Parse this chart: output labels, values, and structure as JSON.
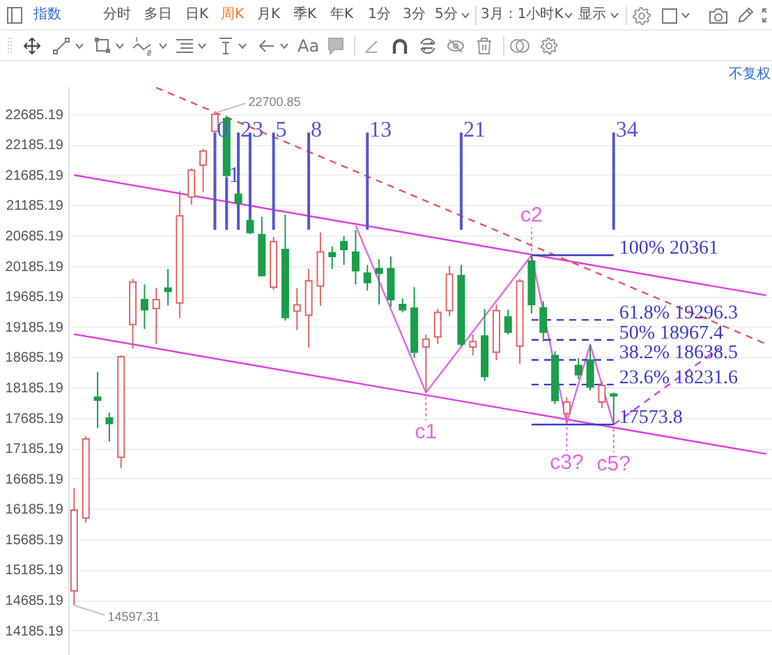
{
  "chart_data": {
    "type": "candlestick",
    "annotations": [
      "指数",
      "分时",
      "多日",
      "日K",
      "周K",
      "月K",
      "季K",
      "年K",
      "1分",
      "3分",
      "5分",
      "3月：1小时K",
      "显示",
      "Aa",
      "不复权",
      "22700.85",
      "14597.31"
    ],
    "categories": [
      null,
      null,
      null,
      null,
      null,
      null,
      null,
      null,
      null,
      null,
      null,
      null,
      null,
      null,
      null,
      null,
      null,
      null,
      null,
      null,
      null,
      null,
      null,
      null,
      null,
      null,
      null,
      null,
      null,
      null,
      null,
      null,
      null,
      null,
      null,
      null,
      null,
      null,
      null,
      null,
      null,
      null,
      null,
      null,
      null,
      null,
      null,
      null,
      null,
      null,
      null,
      null,
      null,
      null,
      null,
      null,
      null,
      null,
      null,
      null
    ],
    "ohlc": [
      [
        14835,
        16530,
        14597.31,
        16165
      ],
      [
        16035,
        17380,
        15960,
        17335
      ],
      [
        18025,
        18440,
        17520,
        17975
      ],
      [
        17680,
        17770,
        17295,
        17590
      ],
      [
        17035,
        18710,
        16855,
        18690
      ],
      [
        19220,
        19970,
        18825,
        19920
      ],
      [
        19630,
        19880,
        19145,
        19465
      ],
      [
        19485,
        19820,
        18895,
        19630
      ],
      [
        19820,
        20135,
        19535,
        19765
      ],
      [
        19575,
        21415,
        19330,
        21010
      ],
      [
        21320,
        21790,
        21195,
        21760
      ],
      [
        21845,
        22110,
        21395,
        22075
      ],
      [
        22400,
        22700.85,
        22400,
        22680
      ],
      [
        22610,
        22655,
        21620,
        21675
      ],
      [
        21365,
        21400,
        21180,
        21225
      ],
      [
        20930,
        20995,
        20705,
        20735
      ],
      [
        20700,
        20995,
        20015,
        20025
      ],
      [
        19835,
        20660,
        19790,
        20585
      ],
      [
        20455,
        21025,
        19285,
        19335
      ],
      [
        19440,
        19820,
        19130,
        19545
      ],
      [
        19375,
        20140,
        18840,
        19940
      ],
      [
        19855,
        20735,
        19530,
        20415
      ],
      [
        20400,
        20505,
        20135,
        20340
      ],
      [
        20585,
        20675,
        20200,
        20455
      ],
      [
        20410,
        20775,
        19880,
        20105
      ],
      [
        20065,
        20200,
        19780,
        19910
      ],
      [
        20140,
        20295,
        19550,
        20065
      ],
      [
        20140,
        20340,
        19515,
        19630
      ],
      [
        19550,
        19650,
        19420,
        19465
      ],
      [
        19490,
        19835,
        18670,
        18765
      ],
      [
        18850,
        19055,
        18100,
        18980
      ],
      [
        19015,
        19475,
        18900,
        19420
      ],
      [
        19450,
        20185,
        19360,
        20050
      ],
      [
        20025,
        20200,
        18860,
        18900
      ],
      [
        18850,
        19055,
        18710,
        18940
      ],
      [
        19030,
        19475,
        18290,
        18365
      ],
      [
        18765,
        19550,
        18635,
        19450
      ],
      [
        19345,
        19465,
        19055,
        19095
      ],
      [
        18865,
        19970,
        18575,
        19935
      ],
      [
        20265,
        20361,
        19400,
        19550
      ],
      [
        19495,
        19605,
        18940,
        19095
      ],
      [
        18710,
        18780,
        17910,
        17970
      ],
      [
        17755,
        18020,
        17600,
        17945
      ],
      [
        18545,
        18665,
        18320,
        18395
      ],
      [
        18635,
        18890,
        18135,
        18190
      ],
      [
        17945,
        18290,
        17845,
        18215
      ],
      [
        18075,
        18100,
        17573.8,
        18045
      ],
      null,
      null,
      null,
      null,
      null,
      null,
      null,
      null,
      null,
      null,
      null,
      null,
      null
    ],
    "colors": [
      "#e06666",
      "#e06666",
      "#1a9e4b",
      "#1a9e4b",
      "#e06666",
      "#e06666",
      "#1a9e4b",
      "#e06666",
      "#1a9e4b",
      "#e06666",
      "#e06666",
      "#e06666",
      "#e06666",
      "#1a9e4b",
      "#1a9e4b",
      "#1a9e4b",
      "#1a9e4b",
      "#e06666",
      "#1a9e4b",
      "#e06666",
      "#e06666",
      "#e06666",
      "#1a9e4b",
      "#1a9e4b",
      "#1a9e4b",
      "#1a9e4b",
      "#1a9e4b",
      "#1a9e4b",
      "#1a9e4b",
      "#1a9e4b",
      "#e06666",
      "#e06666",
      "#e06666",
      "#1a9e4b",
      "#e06666",
      "#1a9e4b",
      "#e06666",
      "#1a9e4b",
      "#e06666",
      "#1a9e4b",
      "#1a9e4b",
      "#1a9e4b",
      "#e06666",
      "#1a9e4b",
      "#1a9e4b",
      "#e06666",
      "#1a9e4b",
      null,
      null,
      null,
      null,
      null,
      null,
      null,
      null,
      null,
      null,
      null,
      null,
      null
    ],
    "ylim": [
      13780,
      23140
    ],
    "yticks": [
      14185.19,
      14685.19,
      15185.19,
      15685.19,
      16185.19,
      16685.19,
      17185.19,
      17685.19,
      18185.19,
      18685.19,
      19185.19,
      19685.19,
      20185.19,
      20685.19,
      21185.19,
      21685.19,
      22185.19,
      22685.19
    ],
    "grid": "y",
    "tick_labels": "y",
    "series": [
      {
        "type": "line",
        "color": "#e03ce0",
        "values": [
          21680,
          null,
          null,
          null,
          null,
          null,
          null,
          null,
          null,
          null,
          null,
          null,
          null,
          null,
          null,
          null,
          null,
          null,
          null,
          null,
          null,
          null,
          null,
          null,
          null,
          null,
          null,
          null,
          null,
          null,
          null,
          null,
          null,
          null,
          null,
          null,
          null,
          null,
          null,
          null,
          null,
          null,
          null,
          null,
          null,
          null,
          null,
          null,
          null,
          null,
          null,
          null,
          null,
          null,
          null,
          null,
          null,
          null,
          null,
          19700
        ]
      },
      {
        "type": "line",
        "color": "#e03ce0",
        "values": [
          19060,
          null,
          null,
          null,
          null,
          null,
          null,
          null,
          null,
          null,
          null,
          null,
          null,
          null,
          null,
          null,
          null,
          null,
          null,
          null,
          null,
          null,
          null,
          null,
          null,
          null,
          null,
          null,
          null,
          null,
          null,
          null,
          null,
          null,
          null,
          null,
          null,
          null,
          null,
          null,
          null,
          null,
          null,
          null,
          null,
          null,
          null,
          null,
          null,
          null,
          null,
          null,
          null,
          null,
          null,
          null,
          null,
          null,
          null,
          17090
        ]
      },
      {
        "type": "line",
        "color": "#e05a5a",
        "line_style": "dashed",
        "values": [
          null,
          null,
          null,
          null,
          null,
          null,
          null,
          23120,
          null,
          null,
          null,
          null,
          null,
          null,
          null,
          null,
          null,
          null,
          null,
          null,
          null,
          null,
          null,
          null,
          null,
          null,
          null,
          null,
          null,
          null,
          null,
          null,
          null,
          null,
          null,
          null,
          null,
          null,
          null,
          null,
          null,
          null,
          null,
          null,
          null,
          null,
          null,
          null,
          null,
          null,
          null,
          null,
          null,
          null,
          null,
          null,
          null,
          null,
          null,
          18900
        ]
      },
      {
        "type": "line",
        "color": "#e466e4",
        "values": [
          null,
          null,
          null,
          null,
          null,
          null,
          null,
          null,
          null,
          null,
          null,
          null,
          null,
          null,
          null,
          null,
          null,
          null,
          null,
          null,
          null,
          null,
          null,
          null,
          20850,
          null,
          null,
          null,
          null,
          null,
          18100,
          null,
          null,
          null,
          null,
          null,
          null,
          null,
          null,
          20361,
          null,
          null,
          17600,
          null,
          18890,
          null,
          17573.8,
          null,
          null,
          null,
          null,
          null,
          null,
          null,
          null,
          null,
          null,
          null,
          null,
          null
        ],
        "value_labels": [
          null,
          null,
          null,
          null,
          null,
          null,
          null,
          null,
          null,
          null,
          null,
          null,
          null,
          null,
          null,
          null,
          null,
          null,
          null,
          null,
          null,
          null,
          null,
          null,
          null,
          null,
          null,
          null,
          null,
          null,
          "c1",
          null,
          null,
          null,
          null,
          null,
          null,
          null,
          null,
          "c2",
          null,
          null,
          "c3?",
          null,
          null,
          null,
          "c5?",
          null,
          null,
          null,
          null,
          null,
          null,
          null,
          null,
          null,
          null,
          null,
          null,
          null
        ]
      },
      {
        "type": "line",
        "color": "#e03ce0",
        "line_style": "dashed",
        "values": [
          null,
          null,
          null,
          null,
          null,
          null,
          null,
          null,
          null,
          null,
          null,
          null,
          null,
          null,
          null,
          null,
          null,
          null,
          null,
          null,
          null,
          null,
          null,
          null,
          null,
          null,
          null,
          null,
          null,
          null,
          null,
          null,
          null,
          null,
          null,
          null,
          null,
          null,
          null,
          null,
          null,
          null,
          null,
          null,
          null,
          null,
          17573.8,
          null,
          null,
          null,
          null,
          null,
          null,
          null,
          null,
          18830,
          null,
          null,
          null,
          null
        ]
      },
      {
        "type": "line",
        "name": "100% 20361",
        "color": "#3c3cc8",
        "values": [
          null,
          null,
          null,
          null,
          null,
          null,
          null,
          null,
          null,
          null,
          null,
          null,
          null,
          null,
          null,
          null,
          null,
          null,
          null,
          null,
          null,
          null,
          null,
          null,
          null,
          null,
          null,
          null,
          null,
          null,
          null,
          null,
          null,
          null,
          null,
          null,
          null,
          null,
          null,
          20361,
          null,
          null,
          null,
          null,
          null,
          null,
          20361,
          null,
          null,
          null,
          null,
          null,
          null,
          null,
          null,
          null,
          null,
          null,
          null,
          null
        ]
      },
      {
        "type": "line",
        "name": "61.8% 19296.3",
        "color": "#3c3cc8",
        "line_style": "dashed",
        "values": [
          null,
          null,
          null,
          null,
          null,
          null,
          null,
          null,
          null,
          null,
          null,
          null,
          null,
          null,
          null,
          null,
          null,
          null,
          null,
          null,
          null,
          null,
          null,
          null,
          null,
          null,
          null,
          null,
          null,
          null,
          null,
          null,
          null,
          null,
          null,
          null,
          null,
          null,
          null,
          19296.3,
          null,
          null,
          null,
          null,
          null,
          null,
          19296.3,
          null,
          null,
          null,
          null,
          null,
          null,
          null,
          null,
          null,
          null,
          null,
          null,
          null
        ]
      },
      {
        "type": "line",
        "name": "50% 18967.4",
        "color": "#3c3cc8",
        "line_style": "dashed",
        "values": [
          null,
          null,
          null,
          null,
          null,
          null,
          null,
          null,
          null,
          null,
          null,
          null,
          null,
          null,
          null,
          null,
          null,
          null,
          null,
          null,
          null,
          null,
          null,
          null,
          null,
          null,
          null,
          null,
          null,
          null,
          null,
          null,
          null,
          null,
          null,
          null,
          null,
          null,
          null,
          18967.4,
          null,
          null,
          null,
          null,
          null,
          null,
          18967.4,
          null,
          null,
          null,
          null,
          null,
          null,
          null,
          null,
          null,
          null,
          null,
          null,
          null
        ]
      },
      {
        "type": "line",
        "name": "38.2% 18638.5",
        "color": "#3c3cc8",
        "line_style": "dashed",
        "values": [
          null,
          null,
          null,
          null,
          null,
          null,
          null,
          null,
          null,
          null,
          null,
          null,
          null,
          null,
          null,
          null,
          null,
          null,
          null,
          null,
          null,
          null,
          null,
          null,
          null,
          null,
          null,
          null,
          null,
          null,
          null,
          null,
          null,
          null,
          null,
          null,
          null,
          null,
          null,
          18638.5,
          null,
          null,
          null,
          null,
          null,
          null,
          18638.5,
          null,
          null,
          null,
          null,
          null,
          null,
          null,
          null,
          null,
          null,
          null,
          null,
          null
        ]
      },
      {
        "type": "line",
        "name": "23.6% 18231.6",
        "color": "#3c3cc8",
        "line_style": "dashed",
        "values": [
          null,
          null,
          null,
          null,
          null,
          null,
          null,
          null,
          null,
          null,
          null,
          null,
          null,
          null,
          null,
          null,
          null,
          null,
          null,
          null,
          null,
          null,
          null,
          null,
          null,
          null,
          null,
          null,
          null,
          null,
          null,
          null,
          null,
          null,
          null,
          null,
          null,
          null,
          null,
          18231.6,
          null,
          null,
          null,
          null,
          null,
          null,
          18231.6,
          null,
          null,
          null,
          null,
          null,
          null,
          null,
          null,
          null,
          null,
          null,
          null,
          null
        ]
      },
      {
        "type": "line",
        "name": "17573.8",
        "color": "#3c3cc8",
        "values": [
          null,
          null,
          null,
          null,
          null,
          null,
          null,
          null,
          null,
          null,
          null,
          null,
          null,
          null,
          null,
          null,
          null,
          null,
          null,
          null,
          null,
          null,
          null,
          null,
          null,
          null,
          null,
          null,
          null,
          null,
          null,
          null,
          null,
          null,
          null,
          null,
          null,
          null,
          null,
          17573.8,
          null,
          null,
          null,
          null,
          null,
          null,
          17573.8,
          null,
          null,
          null,
          null,
          null,
          null,
          null,
          null,
          null,
          null,
          null,
          null,
          null
        ]
      },
      {
        "type": "bar",
        "name": "0",
        "color": "#5656d0",
        "base": [
          null,
          null,
          null,
          null,
          null,
          null,
          null,
          null,
          null,
          null,
          null,
          null,
          20780,
          null,
          null,
          null,
          null,
          null,
          null,
          null,
          null,
          null,
          null,
          null,
          null,
          null,
          null,
          null,
          null,
          null,
          null,
          null,
          null,
          null,
          null,
          null,
          null,
          null,
          null,
          null,
          null,
          null,
          null,
          null,
          null,
          null,
          null,
          null,
          null,
          null,
          null,
          null,
          null,
          null,
          null,
          null,
          null,
          null,
          null,
          null
        ],
        "values": [
          null,
          null,
          null,
          null,
          null,
          null,
          null,
          null,
          null,
          null,
          null,
          null,
          1600,
          null,
          null,
          null,
          null,
          null,
          null,
          null,
          null,
          null,
          null,
          null,
          null,
          null,
          null,
          null,
          null,
          null,
          null,
          null,
          null,
          null,
          null,
          null,
          null,
          null,
          null,
          null,
          null,
          null,
          null,
          null,
          null,
          null,
          null,
          null,
          null,
          null,
          null,
          null,
          null,
          null,
          null,
          null,
          null,
          null,
          null,
          null
        ]
      },
      {
        "type": "bar",
        "name": "1",
        "color": "#5656d0",
        "base": [
          null,
          null,
          null,
          null,
          null,
          null,
          null,
          null,
          null,
          null,
          null,
          null,
          null,
          20780,
          null,
          null,
          null,
          null,
          null,
          null,
          null,
          null,
          null,
          null,
          null,
          null,
          null,
          null,
          null,
          null,
          null,
          null,
          null,
          null,
          null,
          null,
          null,
          null,
          null,
          null,
          null,
          null,
          null,
          null,
          null,
          null,
          null,
          null,
          null,
          null,
          null,
          null,
          null,
          null,
          null,
          null,
          null,
          null,
          null,
          null
        ],
        "values": [
          null,
          null,
          null,
          null,
          null,
          null,
          null,
          null,
          null,
          null,
          null,
          null,
          null,
          860,
          null,
          null,
          null,
          null,
          null,
          null,
          null,
          null,
          null,
          null,
          null,
          null,
          null,
          null,
          null,
          null,
          null,
          null,
          null,
          null,
          null,
          null,
          null,
          null,
          null,
          null,
          null,
          null,
          null,
          null,
          null,
          null,
          null,
          null,
          null,
          null,
          null,
          null,
          null,
          null,
          null,
          null,
          null,
          null,
          null,
          null
        ]
      },
      {
        "type": "bar",
        "name": "2",
        "color": "#5656d0",
        "base": [
          null,
          null,
          null,
          null,
          null,
          null,
          null,
          null,
          null,
          null,
          null,
          null,
          null,
          null,
          20780,
          null,
          null,
          null,
          null,
          null,
          null,
          null,
          null,
          null,
          null,
          null,
          null,
          null,
          null,
          null,
          null,
          null,
          null,
          null,
          null,
          null,
          null,
          null,
          null,
          null,
          null,
          null,
          null,
          null,
          null,
          null,
          null,
          null,
          null,
          null,
          null,
          null,
          null,
          null,
          null,
          null,
          null,
          null,
          null,
          null
        ],
        "values": [
          null,
          null,
          null,
          null,
          null,
          null,
          null,
          null,
          null,
          null,
          null,
          null,
          null,
          null,
          1600,
          null,
          null,
          null,
          null,
          null,
          null,
          null,
          null,
          null,
          null,
          null,
          null,
          null,
          null,
          null,
          null,
          null,
          null,
          null,
          null,
          null,
          null,
          null,
          null,
          null,
          null,
          null,
          null,
          null,
          null,
          null,
          null,
          null,
          null,
          null,
          null,
          null,
          null,
          null,
          null,
          null,
          null,
          null,
          null,
          null
        ]
      },
      {
        "type": "bar",
        "name": "3",
        "color": "#5656d0",
        "base": [
          null,
          null,
          null,
          null,
          null,
          null,
          null,
          null,
          null,
          null,
          null,
          null,
          null,
          null,
          null,
          20780,
          null,
          null,
          null,
          null,
          null,
          null,
          null,
          null,
          null,
          null,
          null,
          null,
          null,
          null,
          null,
          null,
          null,
          null,
          null,
          null,
          null,
          null,
          null,
          null,
          null,
          null,
          null,
          null,
          null,
          null,
          null,
          null,
          null,
          null,
          null,
          null,
          null,
          null,
          null,
          null,
          null,
          null,
          null,
          null
        ],
        "values": [
          null,
          null,
          null,
          null,
          null,
          null,
          null,
          null,
          null,
          null,
          null,
          null,
          null,
          null,
          null,
          1600,
          null,
          null,
          null,
          null,
          null,
          null,
          null,
          null,
          null,
          null,
          null,
          null,
          null,
          null,
          null,
          null,
          null,
          null,
          null,
          null,
          null,
          null,
          null,
          null,
          null,
          null,
          null,
          null,
          null,
          null,
          null,
          null,
          null,
          null,
          null,
          null,
          null,
          null,
          null,
          null,
          null,
          null,
          null,
          null
        ]
      },
      {
        "type": "bar",
        "name": "5",
        "color": "#5656d0",
        "base": [
          null,
          null,
          null,
          null,
          null,
          null,
          null,
          null,
          null,
          null,
          null,
          null,
          null,
          null,
          null,
          null,
          null,
          20780,
          null,
          null,
          null,
          null,
          null,
          null,
          null,
          null,
          null,
          null,
          null,
          null,
          null,
          null,
          null,
          null,
          null,
          null,
          null,
          null,
          null,
          null,
          null,
          null,
          null,
          null,
          null,
          null,
          null,
          null,
          null,
          null,
          null,
          null,
          null,
          null,
          null,
          null,
          null,
          null,
          null,
          null
        ],
        "values": [
          null,
          null,
          null,
          null,
          null,
          null,
          null,
          null,
          null,
          null,
          null,
          null,
          null,
          null,
          null,
          null,
          null,
          1600,
          null,
          null,
          null,
          null,
          null,
          null,
          null,
          null,
          null,
          null,
          null,
          null,
          null,
          null,
          null,
          null,
          null,
          null,
          null,
          null,
          null,
          null,
          null,
          null,
          null,
          null,
          null,
          null,
          null,
          null,
          null,
          null,
          null,
          null,
          null,
          null,
          null,
          null,
          null,
          null,
          null,
          null
        ]
      },
      {
        "type": "bar",
        "name": "8",
        "color": "#5656d0",
        "base": [
          null,
          null,
          null,
          null,
          null,
          null,
          null,
          null,
          null,
          null,
          null,
          null,
          null,
          null,
          null,
          null,
          null,
          null,
          null,
          null,
          20780,
          null,
          null,
          null,
          null,
          null,
          null,
          null,
          null,
          null,
          null,
          null,
          null,
          null,
          null,
          null,
          null,
          null,
          null,
          null,
          null,
          null,
          null,
          null,
          null,
          null,
          null,
          null,
          null,
          null,
          null,
          null,
          null,
          null,
          null,
          null,
          null,
          null,
          null,
          null
        ],
        "values": [
          null,
          null,
          null,
          null,
          null,
          null,
          null,
          null,
          null,
          null,
          null,
          null,
          null,
          null,
          null,
          null,
          null,
          null,
          null,
          null,
          1600,
          null,
          null,
          null,
          null,
          null,
          null,
          null,
          null,
          null,
          null,
          null,
          null,
          null,
          null,
          null,
          null,
          null,
          null,
          null,
          null,
          null,
          null,
          null,
          null,
          null,
          null,
          null,
          null,
          null,
          null,
          null,
          null,
          null,
          null,
          null,
          null,
          null,
          null,
          null
        ]
      },
      {
        "type": "bar",
        "name": "13",
        "color": "#5656d0",
        "base": [
          null,
          null,
          null,
          null,
          null,
          null,
          null,
          null,
          null,
          null,
          null,
          null,
          null,
          null,
          null,
          null,
          null,
          null,
          null,
          null,
          null,
          null,
          null,
          null,
          null,
          20780,
          null,
          null,
          null,
          null,
          null,
          null,
          null,
          null,
          null,
          null,
          null,
          null,
          null,
          null,
          null,
          null,
          null,
          null,
          null,
          null,
          null,
          null,
          null,
          null,
          null,
          null,
          null,
          null,
          null,
          null,
          null,
          null,
          null,
          null
        ],
        "values": [
          null,
          null,
          null,
          null,
          null,
          null,
          null,
          null,
          null,
          null,
          null,
          null,
          null,
          null,
          null,
          null,
          null,
          null,
          null,
          null,
          null,
          null,
          null,
          null,
          null,
          1600,
          null,
          null,
          null,
          null,
          null,
          null,
          null,
          null,
          null,
          null,
          null,
          null,
          null,
          null,
          null,
          null,
          null,
          null,
          null,
          null,
          null,
          null,
          null,
          null,
          null,
          null,
          null,
          null,
          null,
          null,
          null,
          null,
          null,
          null
        ]
      },
      {
        "type": "bar",
        "name": "21",
        "color": "#5656d0",
        "base": [
          null,
          null,
          null,
          null,
          null,
          null,
          null,
          null,
          null,
          null,
          null,
          null,
          null,
          null,
          null,
          null,
          null,
          null,
          null,
          null,
          null,
          null,
          null,
          null,
          null,
          null,
          null,
          null,
          null,
          null,
          null,
          null,
          null,
          20780,
          null,
          null,
          null,
          null,
          null,
          null,
          null,
          null,
          null,
          null,
          null,
          null,
          null,
          null,
          null,
          null,
          null,
          null,
          null,
          null,
          null,
          null,
          null,
          null,
          null,
          null
        ],
        "values": [
          null,
          null,
          null,
          null,
          null,
          null,
          null,
          null,
          null,
          null,
          null,
          null,
          null,
          null,
          null,
          null,
          null,
          null,
          null,
          null,
          null,
          null,
          null,
          null,
          null,
          null,
          null,
          null,
          null,
          null,
          null,
          null,
          null,
          1600,
          null,
          null,
          null,
          null,
          null,
          null,
          null,
          null,
          null,
          null,
          null,
          null,
          null,
          null,
          null,
          null,
          null,
          null,
          null,
          null,
          null,
          null,
          null,
          null,
          null,
          null
        ]
      },
      {
        "type": "bar",
        "name": "34",
        "color": "#5656d0",
        "base": [
          null,
          null,
          null,
          null,
          null,
          null,
          null,
          null,
          null,
          null,
          null,
          null,
          null,
          null,
          null,
          null,
          null,
          null,
          null,
          null,
          null,
          null,
          null,
          null,
          null,
          null,
          null,
          null,
          null,
          null,
          null,
          null,
          null,
          null,
          null,
          null,
          null,
          null,
          null,
          null,
          null,
          null,
          null,
          null,
          null,
          null,
          20780,
          null,
          null,
          null,
          null,
          null,
          null,
          null,
          null,
          null,
          null,
          null,
          null,
          null
        ],
        "values": [
          null,
          null,
          null,
          null,
          null,
          null,
          null,
          null,
          null,
          null,
          null,
          null,
          null,
          null,
          null,
          null,
          null,
          null,
          null,
          null,
          null,
          null,
          null,
          null,
          null,
          null,
          null,
          null,
          null,
          null,
          null,
          null,
          null,
          null,
          null,
          null,
          null,
          null,
          null,
          null,
          null,
          null,
          null,
          null,
          null,
          null,
          1600,
          null,
          null,
          null,
          null,
          null,
          null,
          null,
          null,
          null,
          null,
          null,
          null,
          null
        ]
      }
    ]
  }
}
